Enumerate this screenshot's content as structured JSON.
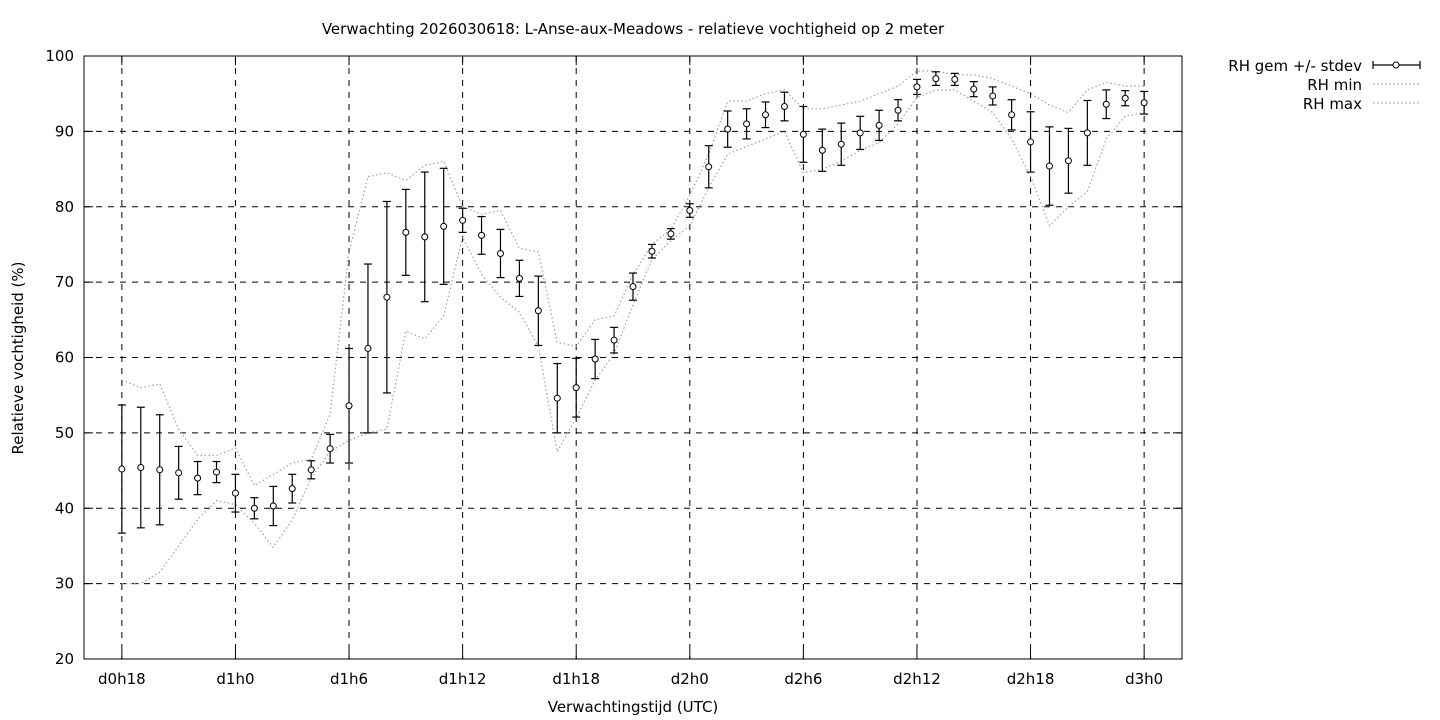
{
  "chart_data": {
    "type": "line",
    "title": "Verwachting 2026030618: L-Anse-aux-Meadows - relatieve vochtigheid op 2 meter",
    "xlabel": "Verwachtingstijd (UTC)",
    "ylabel": "Relatieve vochtigheid (%)",
    "xlim": [
      -2,
      56
    ],
    "ylim": [
      20,
      100
    ],
    "xticks": [
      {
        "x": 0,
        "label": "d0h18"
      },
      {
        "x": 6,
        "label": "d1h0"
      },
      {
        "x": 12,
        "label": "d1h6"
      },
      {
        "x": 18,
        "label": "d1h12"
      },
      {
        "x": 24,
        "label": "d1h18"
      },
      {
        "x": 30,
        "label": "d2h0"
      },
      {
        "x": 36,
        "label": "d2h6"
      },
      {
        "x": 42,
        "label": "d2h12"
      },
      {
        "x": 48,
        "label": "d2h18"
      },
      {
        "x": 54,
        "label": "d3h0"
      }
    ],
    "yticks": [
      20,
      30,
      40,
      50,
      60,
      70,
      80,
      90,
      100
    ],
    "grid": true,
    "legend_position": "outside-top-right",
    "series": [
      {
        "name": "RH gem +/- stdev",
        "style": "errorbars-points",
        "color": "#000000",
        "x": [
          0,
          1,
          2,
          3,
          4,
          5,
          6,
          7,
          8,
          9,
          10,
          11,
          12,
          13,
          14,
          15,
          16,
          17,
          18,
          19,
          20,
          21,
          22,
          23,
          24,
          25,
          26,
          27,
          28,
          29,
          30,
          31,
          32,
          33,
          34,
          35,
          36,
          37,
          38,
          39,
          40,
          41,
          42,
          43,
          44,
          45,
          46,
          47,
          48,
          49,
          50,
          51,
          52,
          53,
          54
        ],
        "mean": [
          45.2,
          45.4,
          45.1,
          44.7,
          44.0,
          44.8,
          42.0,
          40.0,
          40.3,
          42.6,
          45.1,
          47.9,
          53.6,
          61.2,
          68.0,
          76.6,
          76.0,
          77.4,
          78.2,
          76.2,
          73.8,
          70.5,
          66.2,
          54.6,
          56.0,
          59.8,
          62.3,
          69.4,
          74.1,
          76.4,
          79.5,
          85.3,
          90.3,
          91.0,
          92.2,
          93.3,
          89.6,
          87.5,
          88.3,
          89.8,
          90.8,
          92.8,
          95.9,
          97.0,
          96.9,
          95.6,
          94.7,
          92.2,
          88.6,
          85.4,
          86.1,
          89.8,
          93.6,
          94.4,
          93.8
        ],
        "stdev": [
          8.5,
          8.0,
          7.3,
          3.5,
          2.2,
          1.4,
          2.5,
          1.4,
          2.6,
          1.9,
          1.2,
          1.9,
          7.6,
          11.2,
          12.7,
          5.7,
          8.6,
          7.7,
          1.6,
          2.5,
          3.2,
          2.4,
          4.6,
          4.6,
          3.9,
          2.6,
          1.7,
          1.8,
          0.9,
          0.7,
          0.9,
          2.8,
          2.4,
          2.0,
          1.7,
          1.9,
          3.7,
          2.8,
          2.8,
          2.2,
          2.0,
          1.4,
          1.0,
          0.9,
          0.8,
          1.0,
          1.2,
          2.0,
          4.0,
          5.2,
          4.3,
          4.3,
          1.9,
          1.0,
          1.5
        ]
      },
      {
        "name": "RH min",
        "style": "dotted",
        "color": "#a0a0a0",
        "x": [
          0,
          1,
          2,
          3,
          4,
          5,
          6,
          7,
          8,
          9,
          10,
          11,
          12,
          13,
          14,
          15,
          16,
          17,
          18,
          19,
          20,
          21,
          22,
          23,
          24,
          25,
          26,
          27,
          28,
          29,
          30,
          31,
          32,
          33,
          34,
          35,
          36,
          37,
          38,
          39,
          40,
          41,
          42,
          43,
          44,
          45,
          46,
          47,
          48,
          49,
          50,
          51,
          52,
          53,
          54
        ],
        "values": [
          30.0,
          30.0,
          31.5,
          35.0,
          38.5,
          41.0,
          40.5,
          38.0,
          34.8,
          38.5,
          44.0,
          47.5,
          49.0,
          50.0,
          50.5,
          63.5,
          62.5,
          65.5,
          76.0,
          71.0,
          68.0,
          66.0,
          61.5,
          47.5,
          52.0,
          57.0,
          60.5,
          67.0,
          73.0,
          75.5,
          77.5,
          82.5,
          87.0,
          88.0,
          89.0,
          90.0,
          84.5,
          85.0,
          86.0,
          87.5,
          88.5,
          91.0,
          94.5,
          95.5,
          95.5,
          94.0,
          92.5,
          89.0,
          84.0,
          77.5,
          80.0,
          82.0,
          89.0,
          92.0,
          92.5
        ]
      },
      {
        "name": "RH max",
        "style": "dotted",
        "color": "#a0a0a0",
        "x": [
          0,
          1,
          2,
          3,
          4,
          5,
          6,
          7,
          8,
          9,
          10,
          11,
          12,
          13,
          14,
          15,
          16,
          17,
          18,
          19,
          20,
          21,
          22,
          23,
          24,
          25,
          26,
          27,
          28,
          29,
          30,
          31,
          32,
          33,
          34,
          35,
          36,
          37,
          38,
          39,
          40,
          41,
          42,
          43,
          44,
          45,
          46,
          47,
          48,
          49,
          50,
          51,
          52,
          53,
          54
        ],
        "values": [
          57.0,
          56.0,
          56.5,
          50.5,
          47.0,
          47.0,
          48.0,
          43.0,
          44.5,
          46.0,
          46.5,
          52.5,
          74.0,
          84.0,
          84.5,
          83.5,
          85.5,
          86.0,
          80.0,
          79.0,
          79.5,
          74.5,
          74.0,
          62.0,
          61.5,
          65.0,
          65.5,
          71.0,
          75.0,
          77.0,
          81.5,
          87.0,
          94.0,
          94.0,
          95.0,
          95.5,
          93.0,
          93.0,
          93.5,
          94.0,
          95.0,
          96.0,
          98.0,
          98.0,
          97.5,
          97.5,
          97.0,
          96.0,
          95.0,
          93.5,
          92.5,
          95.5,
          96.5,
          96.0,
          96.0
        ]
      }
    ]
  }
}
